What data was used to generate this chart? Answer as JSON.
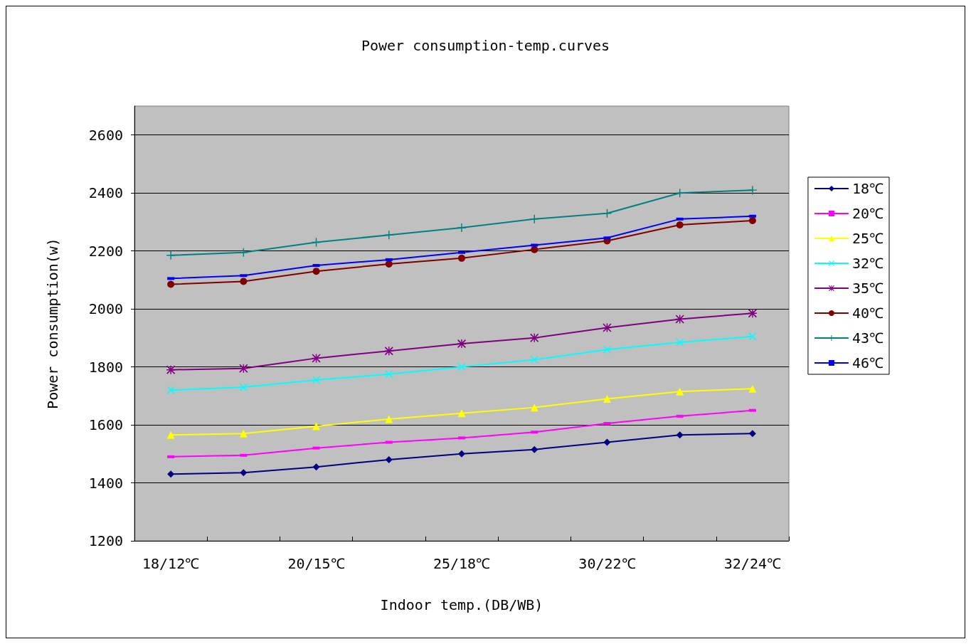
{
  "chart_data": {
    "type": "line",
    "title": "Power consumption-temp.curves",
    "xlabel": "Indoor temp.(DB/WB)",
    "ylabel": "Power consumption(w)",
    "categories": [
      "18/12℃",
      null,
      "20/15℃",
      null,
      "25/18℃",
      null,
      "30/22℃",
      null,
      "32/24℃"
    ],
    "ylim": [
      1200,
      2700
    ],
    "yticks": [
      1200,
      1400,
      1600,
      1800,
      2000,
      2200,
      2400,
      2600
    ],
    "grid": "y",
    "legend": "right",
    "series": [
      {
        "name": "18℃",
        "color": "#000080",
        "marker": "diamond",
        "values": [
          1430,
          1435,
          1455,
          1480,
          1500,
          1515,
          1540,
          1565,
          1570
        ]
      },
      {
        "name": "20℃",
        "color": "#ff00ff",
        "marker": "square",
        "values": [
          1490,
          1495,
          1520,
          1540,
          1555,
          1575,
          1605,
          1630,
          1650
        ]
      },
      {
        "name": "25℃",
        "color": "#ffff00",
        "marker": "triangle",
        "values": [
          1565,
          1570,
          1595,
          1620,
          1640,
          1660,
          1690,
          1715,
          1725
        ]
      },
      {
        "name": "32℃",
        "color": "#00ffff",
        "marker": "cross",
        "values": [
          1720,
          1730,
          1755,
          1775,
          1800,
          1825,
          1860,
          1885,
          1905
        ]
      },
      {
        "name": "35℃",
        "color": "#800080",
        "marker": "star",
        "values": [
          1790,
          1795,
          1830,
          1855,
          1880,
          1900,
          1935,
          1965,
          1985
        ]
      },
      {
        "name": "40℃",
        "color": "#800000",
        "marker": "circle",
        "values": [
          2085,
          2095,
          2130,
          2155,
          2175,
          2205,
          2235,
          2290,
          2305
        ]
      },
      {
        "name": "43℃",
        "color": "#008080",
        "marker": "plus",
        "values": [
          2185,
          2195,
          2230,
          2255,
          2280,
          2310,
          2330,
          2400,
          2410
        ]
      },
      {
        "name": "46℃",
        "color": "#0000ff",
        "marker": "square",
        "values": [
          2105,
          2115,
          2150,
          2170,
          2195,
          2220,
          2245,
          2310,
          2320
        ]
      }
    ]
  }
}
